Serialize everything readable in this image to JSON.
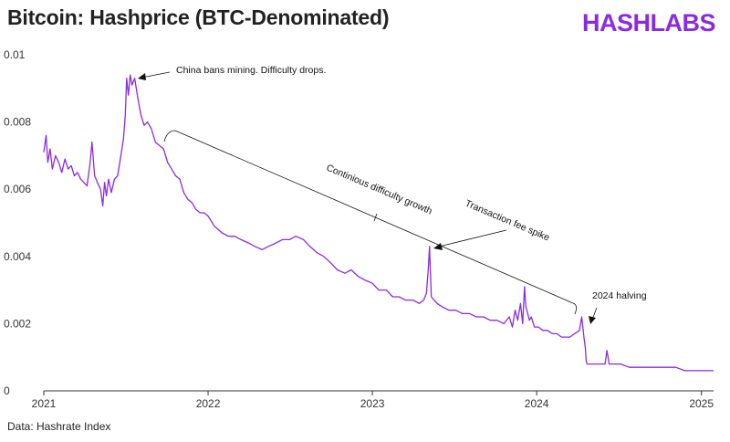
{
  "header": {
    "title": "Bitcoin: Hashprice (BTC-Denominated)",
    "logo_text": "HASHLABS"
  },
  "footer": {
    "source": "Data: Hashrate Index"
  },
  "colors": {
    "series": "#8a2be2",
    "logo": "#8a2be2",
    "axis": "#333333"
  },
  "chart_data": {
    "type": "line",
    "title": "Bitcoin: Hashprice (BTC-Denominated)",
    "xlabel": "",
    "ylabel": "",
    "x_axis": "date",
    "xlim": [
      "2021-01-01",
      "2025-01-28"
    ],
    "ylim": [
      0,
      0.01
    ],
    "y_ticks": [
      0,
      0.002,
      0.004,
      0.006,
      0.008,
      0.01
    ],
    "y_tick_labels": [
      "0",
      "0.002",
      "0.004",
      "0.006",
      "0.008",
      "0.01"
    ],
    "x_ticks": [
      "2021-01-01",
      "2022-01-01",
      "2023-01-01",
      "2024-01-01",
      "2025-01-01"
    ],
    "x_tick_labels": [
      "2021",
      "2022",
      "2023",
      "2024",
      "2025"
    ],
    "grid": false,
    "legend": "none",
    "series": [
      {
        "x": [
          "2021-01-01",
          "2021-01-06",
          "2021-01-10",
          "2021-01-15",
          "2021-01-20",
          "2021-01-27",
          "2021-02-03",
          "2021-02-10",
          "2021-02-17",
          "2021-02-24",
          "2021-03-03",
          "2021-03-10",
          "2021-03-17",
          "2021-03-24",
          "2021-03-31",
          "2021-04-07",
          "2021-04-14",
          "2021-04-18",
          "2021-04-24",
          "2021-04-30",
          "2021-05-07",
          "2021-05-12",
          "2021-05-16",
          "2021-05-20",
          "2021-05-25",
          "2021-05-31",
          "2021-06-07",
          "2021-06-14",
          "2021-06-20",
          "2021-06-27",
          "2021-07-01",
          "2021-07-04",
          "2021-07-08",
          "2021-07-12",
          "2021-07-16",
          "2021-07-22",
          "2021-07-29",
          "2021-08-05",
          "2021-08-12",
          "2021-08-19",
          "2021-08-28",
          "2021-09-06",
          "2021-09-15",
          "2021-09-24",
          "2021-10-03",
          "2021-10-12",
          "2021-10-21",
          "2021-10-30",
          "2021-11-08",
          "2021-11-17",
          "2021-11-26",
          "2021-12-05",
          "2021-12-14",
          "2021-12-23",
          "2022-01-01",
          "2022-01-15",
          "2022-02-01",
          "2022-02-15",
          "2022-03-01",
          "2022-03-15",
          "2022-04-01",
          "2022-04-15",
          "2022-05-01",
          "2022-05-15",
          "2022-06-01",
          "2022-06-15",
          "2022-07-01",
          "2022-07-15",
          "2022-08-01",
          "2022-08-15",
          "2022-09-01",
          "2022-09-15",
          "2022-10-01",
          "2022-10-15",
          "2022-11-01",
          "2022-11-15",
          "2022-12-01",
          "2022-12-15",
          "2023-01-01",
          "2023-01-15",
          "2023-02-01",
          "2023-02-15",
          "2023-03-01",
          "2023-03-15",
          "2023-04-01",
          "2023-04-15",
          "2023-04-25",
          "2023-05-01",
          "2023-05-05",
          "2023-05-08",
          "2023-05-10",
          "2023-05-12",
          "2023-05-18",
          "2023-05-25",
          "2023-06-05",
          "2023-06-20",
          "2023-07-05",
          "2023-07-20",
          "2023-08-05",
          "2023-08-20",
          "2023-09-05",
          "2023-09-20",
          "2023-10-05",
          "2023-10-20",
          "2023-11-01",
          "2023-11-08",
          "2023-11-14",
          "2023-11-20",
          "2023-11-26",
          "2023-12-01",
          "2023-12-05",
          "2023-12-08",
          "2023-12-12",
          "2023-12-16",
          "2023-12-20",
          "2023-12-27",
          "2024-01-05",
          "2024-01-15",
          "2024-01-25",
          "2024-02-05",
          "2024-02-15",
          "2024-02-25",
          "2024-03-05",
          "2024-03-15",
          "2024-03-25",
          "2024-04-05",
          "2024-04-10",
          "2024-04-15",
          "2024-04-18",
          "2024-04-20",
          "2024-04-22",
          "2024-04-27",
          "2024-05-05",
          "2024-05-20",
          "2024-06-01",
          "2024-06-05",
          "2024-06-10",
          "2024-06-20",
          "2024-07-05",
          "2024-07-25",
          "2024-08-15",
          "2024-09-05",
          "2024-09-25",
          "2024-10-15",
          "2024-11-05",
          "2024-11-25",
          "2024-12-15",
          "2025-01-01",
          "2025-01-20",
          "2025-01-28"
        ],
        "y": [
          0.0071,
          0.0076,
          0.0068,
          0.0072,
          0.0066,
          0.007,
          0.0068,
          0.0065,
          0.0069,
          0.0066,
          0.0067,
          0.0064,
          0.0065,
          0.0063,
          0.0062,
          0.0061,
          0.0068,
          0.0074,
          0.0064,
          0.0062,
          0.006,
          0.0055,
          0.0062,
          0.0058,
          0.0063,
          0.0059,
          0.0063,
          0.0064,
          0.0069,
          0.0075,
          0.0082,
          0.0093,
          0.0088,
          0.0094,
          0.0091,
          0.0093,
          0.0087,
          0.0082,
          0.0079,
          0.008,
          0.0078,
          0.0074,
          0.0073,
          0.0072,
          0.0068,
          0.0066,
          0.0064,
          0.0063,
          0.0059,
          0.0057,
          0.0056,
          0.0054,
          0.0053,
          0.0053,
          0.0052,
          0.0049,
          0.0047,
          0.0046,
          0.0046,
          0.0045,
          0.0044,
          0.0043,
          0.0042,
          0.0043,
          0.0044,
          0.0045,
          0.0045,
          0.0046,
          0.0045,
          0.0043,
          0.0041,
          0.004,
          0.0038,
          0.0036,
          0.0035,
          0.0036,
          0.0034,
          0.0033,
          0.0032,
          0.003,
          0.003,
          0.0028,
          0.0028,
          0.0027,
          0.0027,
          0.0026,
          0.0027,
          0.0029,
          0.0036,
          0.0043,
          0.0035,
          0.0028,
          0.0027,
          0.0026,
          0.0025,
          0.0024,
          0.0024,
          0.0023,
          0.0023,
          0.0022,
          0.0022,
          0.0021,
          0.0021,
          0.002,
          0.0022,
          0.0019,
          0.0024,
          0.0021,
          0.0026,
          0.002,
          0.0031,
          0.0025,
          0.0023,
          0.0021,
          0.0022,
          0.0019,
          0.0019,
          0.0018,
          0.0018,
          0.0017,
          0.0017,
          0.0016,
          0.0016,
          0.0016,
          0.0017,
          0.0018,
          0.0022,
          0.0016,
          0.0013,
          0.0009,
          0.0008,
          0.0008,
          0.0008,
          0.0008,
          0.0008,
          0.0012,
          0.0008,
          0.0008,
          0.0008,
          0.0007,
          0.0007,
          0.0007,
          0.0007,
          0.0007,
          0.0007,
          0.0006,
          0.0006,
          0.0006,
          0.0006,
          0.0006
        ]
      }
    ],
    "annotations": [
      {
        "text": "China bans mining. Difficulty drops.",
        "x": "2021-07-16",
        "y": 0.0094
      },
      {
        "text": "Continious difficulty growth"
      },
      {
        "text": "Transaction fee spike",
        "x": "2023-05-08",
        "y": 0.0043
      },
      {
        "text": "2024 halving",
        "x": "2024-04-20",
        "y": 0.002
      }
    ]
  }
}
